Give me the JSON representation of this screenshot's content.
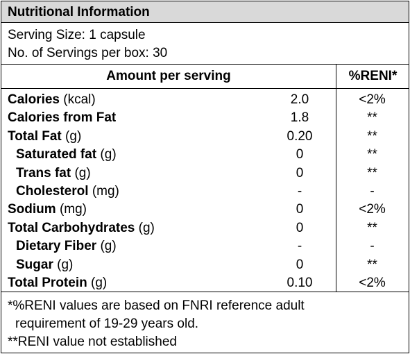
{
  "panel": {
    "title": "Nutritional Information",
    "serving_size": "Serving Size: 1 capsule",
    "servings_per_box": "No. of Servings per box: 30"
  },
  "header": {
    "amount_label": "Amount per serving",
    "reni_label": "%RENI*"
  },
  "rows": [
    {
      "name": "Calories",
      "unit": "(kcal)",
      "amount": "2.0",
      "reni": "<2%",
      "indent": false
    },
    {
      "name": "Calories from Fat",
      "unit": "",
      "amount": "1.8",
      "reni": "**",
      "indent": false
    },
    {
      "name": "Total Fat",
      "unit": "(g)",
      "amount": "0.20",
      "reni": "**",
      "indent": false
    },
    {
      "name": "Saturated fat",
      "unit": "(g)",
      "amount": "0",
      "reni": "**",
      "indent": true
    },
    {
      "name": "Trans fat",
      "unit": "(g)",
      "amount": "0",
      "reni": "**",
      "indent": true
    },
    {
      "name": "Cholesterol",
      "unit": "(mg)",
      "amount": "-",
      "reni": "-",
      "indent": true
    },
    {
      "name": "Sodium",
      "unit": "(mg)",
      "amount": "0",
      "reni": "<2%",
      "indent": false
    },
    {
      "name": "Total Carbohydrates",
      "unit": "(g)",
      "amount": "0",
      "reni": "**",
      "indent": false
    },
    {
      "name": "Dietary Fiber",
      "unit": "(g)",
      "amount": "-",
      "reni": "-",
      "indent": true
    },
    {
      "name": "Sugar",
      "unit": "(g)",
      "amount": "0",
      "reni": "**",
      "indent": true
    },
    {
      "name": "Total Protein",
      "unit": "(g)",
      "amount": "0.10",
      "reni": "<2%",
      "indent": false
    }
  ],
  "footnotes": {
    "line1": "*%RENI values are based on FNRI reference adult",
    "line2": "requirement of 19-29 years old.",
    "line3": "**RENI value not established"
  }
}
